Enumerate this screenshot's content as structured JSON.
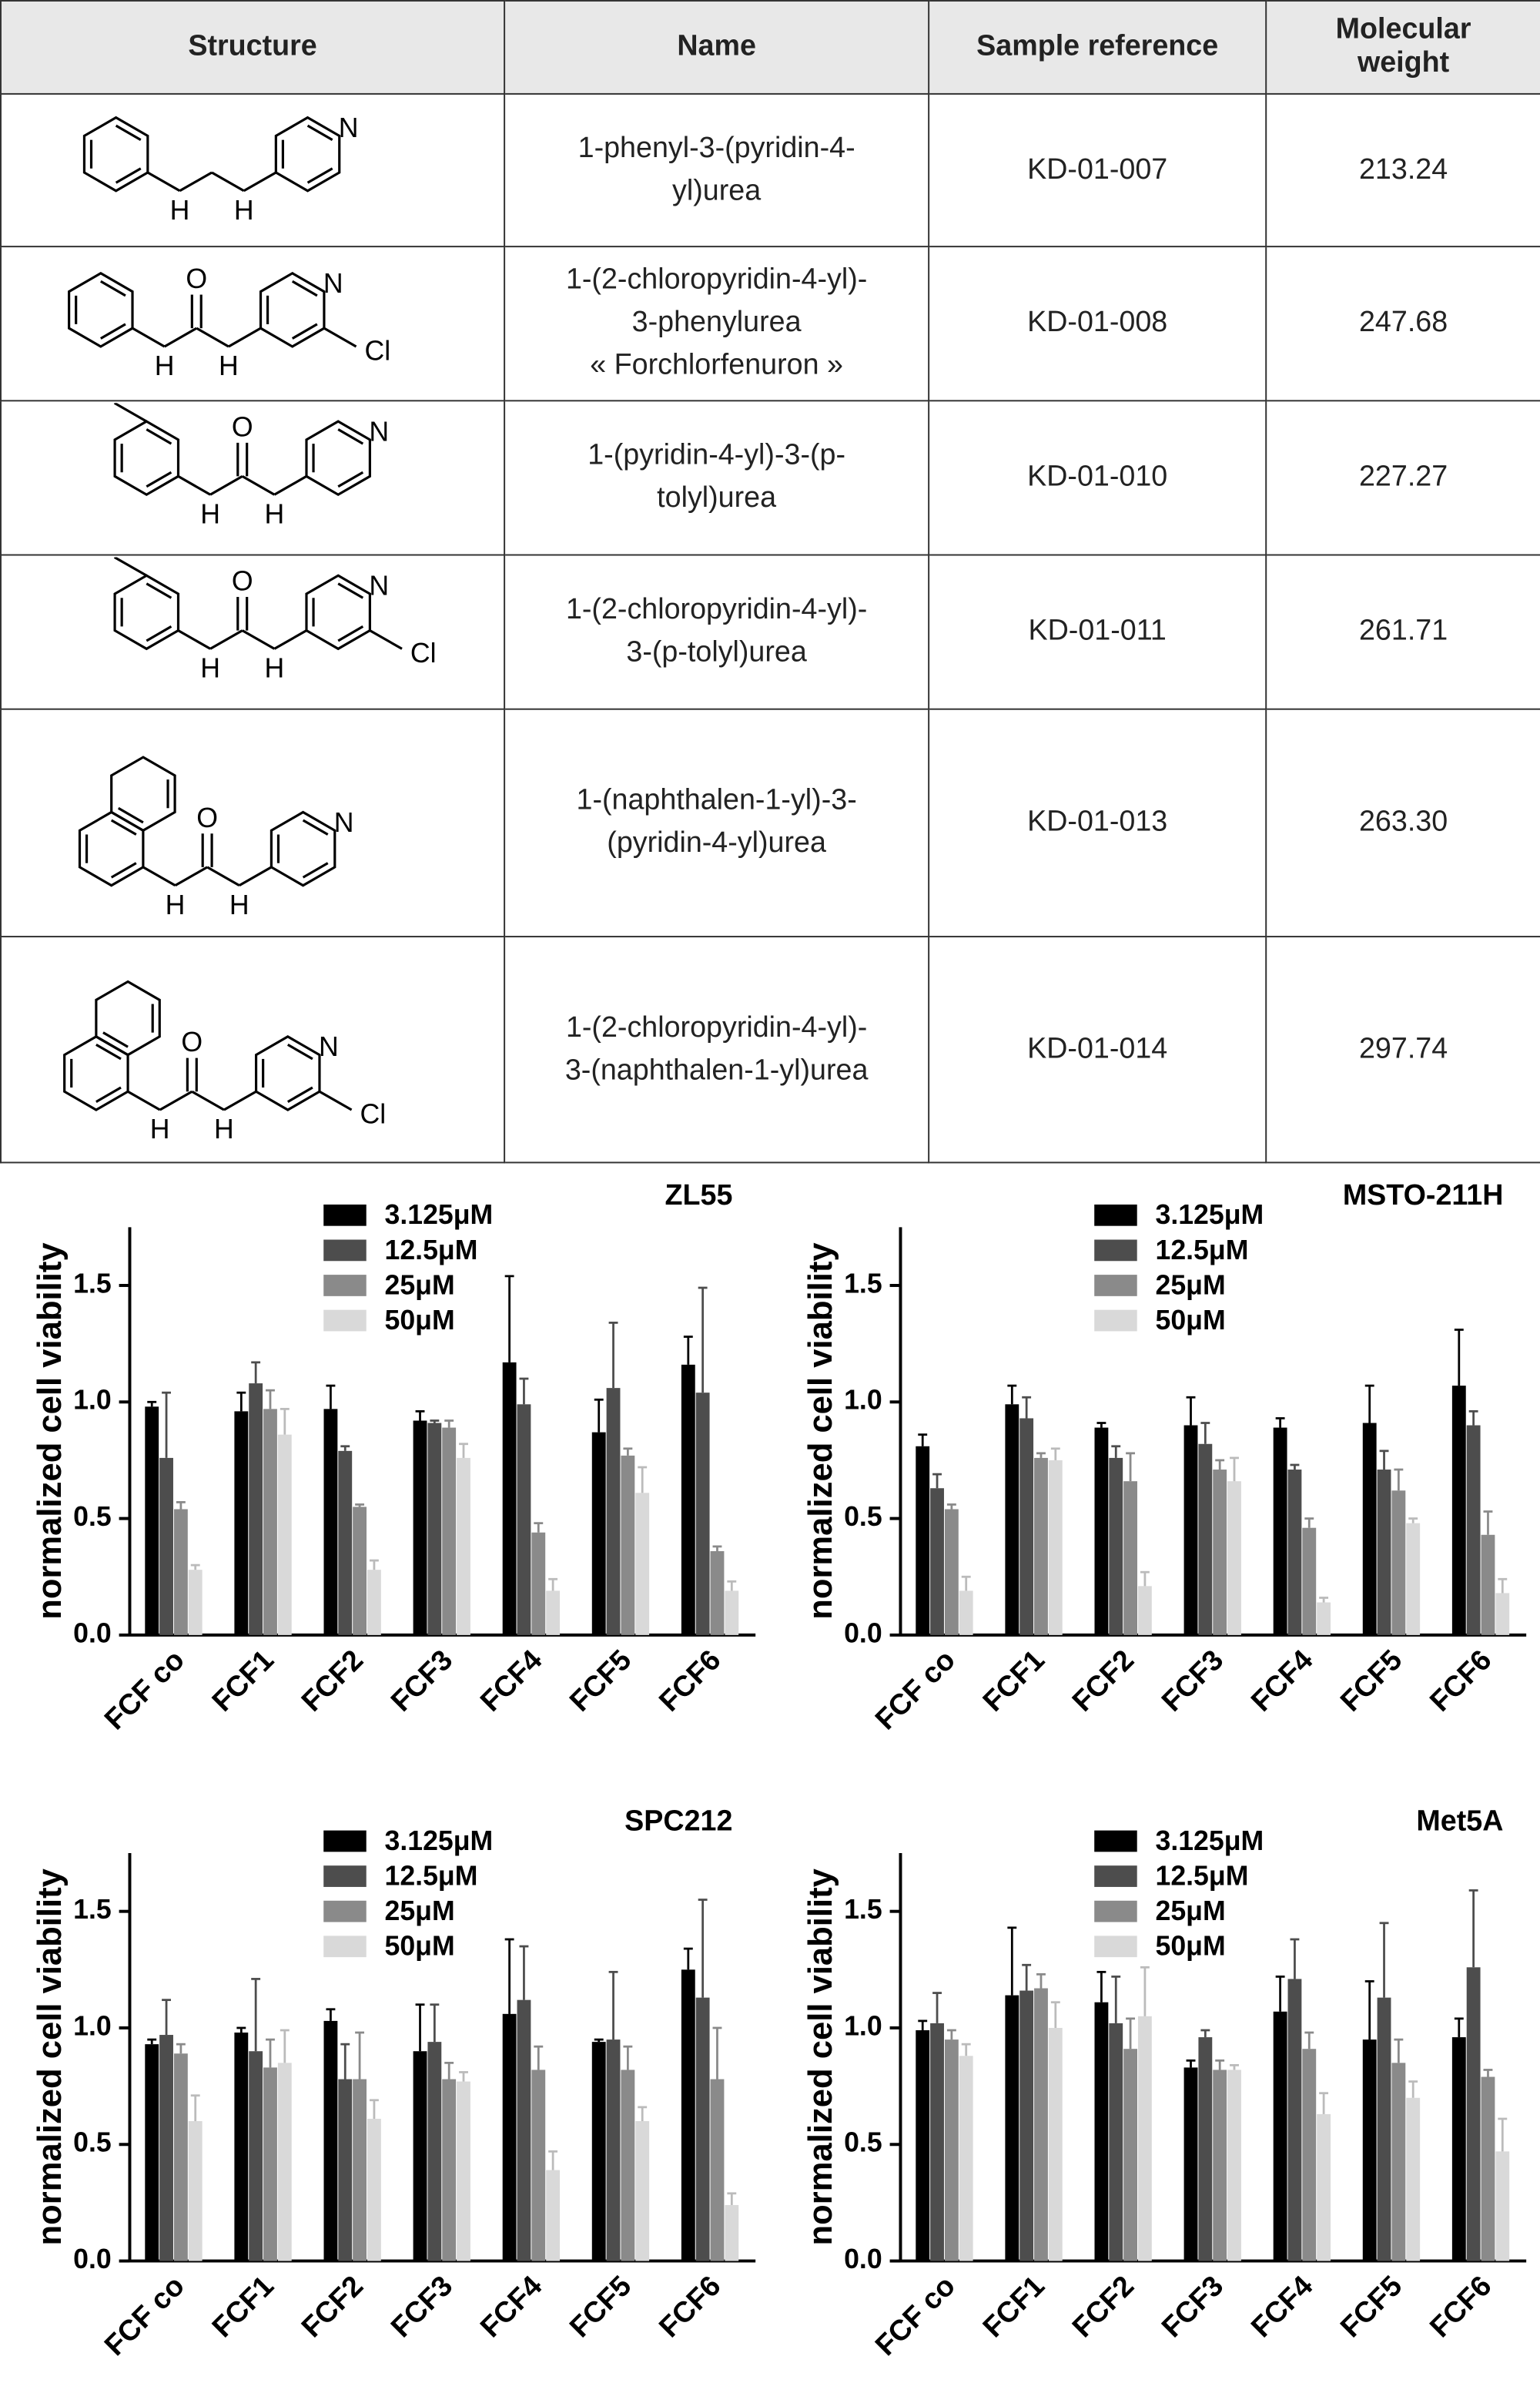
{
  "table": {
    "headers": [
      "Structure",
      "Name",
      "Sample reference",
      "Molecular weight"
    ],
    "rows": [
      {
        "structure_atoms": [
          "N",
          "H",
          "H"
        ],
        "name": [
          "1-phenyl-3-(pyridin-4-",
          "yl)urea"
        ],
        "reference": "KD-01-007",
        "weight": "213.24"
      },
      {
        "structure_atoms": [
          "N",
          "H",
          "H",
          "O",
          "Cl"
        ],
        "name": [
          "1-(2-chloropyridin-4-yl)-",
          "3-phenylurea",
          "« Forchlorfenuron »"
        ],
        "reference": "KD-01-008",
        "weight": "247.68"
      },
      {
        "structure_atoms": [
          "N",
          "H",
          "H",
          "O"
        ],
        "name": [
          "1-(pyridin-4-yl)-3-(p-",
          "tolyl)urea"
        ],
        "reference": "KD-01-010",
        "weight": "227.27"
      },
      {
        "structure_atoms": [
          "N",
          "H",
          "H",
          "O",
          "Cl"
        ],
        "name": [
          "1-(2-chloropyridin-4-yl)-",
          "3-(p-tolyl)urea"
        ],
        "reference": "KD-01-011",
        "weight": "261.71"
      },
      {
        "structure_atoms": [
          "N",
          "H",
          "H",
          "O"
        ],
        "name": [
          "1-(naphthalen-1-yl)-3-",
          "(pyridin-4-yl)urea"
        ],
        "reference": "KD-01-013",
        "weight": "263.30"
      },
      {
        "structure_atoms": [
          "N",
          "H",
          "H",
          "O",
          "Cl"
        ],
        "name": [
          "1-(2-chloropyridin-4-yl)-",
          "3-(naphthalen-1-yl)urea"
        ],
        "reference": "KD-01-014",
        "weight": "297.74"
      }
    ]
  },
  "chart_data": [
    {
      "type": "bar",
      "title": "ZL55",
      "y_label": "normalized cell viability",
      "categories": [
        "FCF co",
        "FCF1",
        "FCF2",
        "FCF3",
        "FCF4",
        "FCF5",
        "FCF6"
      ],
      "ylim": [
        0,
        1.75
      ],
      "yticks": [
        {
          "value": 0,
          "label": "0.0"
        },
        0.5,
        {
          "value": 1,
          "label": "1.0"
        },
        1.5
      ],
      "series": [
        {
          "name": "3.125μM",
          "color": "#000000",
          "values": [
            0.98,
            0.96,
            0.97,
            0.92,
            1.17,
            0.87,
            1.16
          ],
          "errors": [
            0.02,
            0.08,
            0.1,
            0.04,
            0.37,
            0.14,
            0.12
          ]
        },
        {
          "name": "12.5μM",
          "color": "#4d4d4d",
          "values": [
            0.76,
            1.08,
            0.79,
            0.91,
            0.99,
            1.06,
            1.04
          ],
          "errors": [
            0.28,
            0.09,
            0.02,
            0.01,
            0.11,
            0.28,
            0.45
          ]
        },
        {
          "name": "25μM",
          "color": "#8a8a8a",
          "values": [
            0.54,
            0.97,
            0.55,
            0.89,
            0.44,
            0.77,
            0.36
          ],
          "errors": [
            0.03,
            0.08,
            0.01,
            0.03,
            0.04,
            0.03,
            0.02
          ]
        },
        {
          "name": "50μM",
          "color": "#d9d9d9",
          "values": [
            0.28,
            0.86,
            0.28,
            0.76,
            0.19,
            0.61,
            0.19
          ],
          "errors": [
            0.02,
            0.11,
            0.04,
            0.06,
            0.05,
            0.11,
            0.04
          ]
        }
      ]
    },
    {
      "type": "bar",
      "title": "MSTO-211H",
      "y_label": "normalized cell viability",
      "categories": [
        "FCF co",
        "FCF1",
        "FCF2",
        "FCF3",
        "FCF4",
        "FCF5",
        "FCF6"
      ],
      "ylim": [
        0,
        1.75
      ],
      "yticks": [
        {
          "value": 0,
          "label": "0.0"
        },
        0.5,
        {
          "value": 1,
          "label": "1.0"
        },
        1.5
      ],
      "series": [
        {
          "name": "3.125μM",
          "color": "#000000",
          "values": [
            0.81,
            0.99,
            0.89,
            0.9,
            0.89,
            0.91,
            1.07
          ],
          "errors": [
            0.05,
            0.08,
            0.02,
            0.12,
            0.04,
            0.16,
            0.24
          ]
        },
        {
          "name": "12.5μM",
          "color": "#4d4d4d",
          "values": [
            0.63,
            0.93,
            0.76,
            0.82,
            0.71,
            0.71,
            0.9
          ],
          "errors": [
            0.06,
            0.09,
            0.05,
            0.09,
            0.02,
            0.08,
            0.06
          ]
        },
        {
          "name": "25μM",
          "color": "#8a8a8a",
          "values": [
            0.54,
            0.76,
            0.66,
            0.71,
            0.46,
            0.62,
            0.43
          ],
          "errors": [
            0.02,
            0.02,
            0.12,
            0.04,
            0.04,
            0.09,
            0.1
          ]
        },
        {
          "name": "50μM",
          "color": "#d9d9d9",
          "values": [
            0.19,
            0.75,
            0.21,
            0.66,
            0.14,
            0.48,
            0.18
          ],
          "errors": [
            0.06,
            0.05,
            0.06,
            0.1,
            0.02,
            0.02,
            0.06
          ]
        }
      ]
    },
    {
      "type": "bar",
      "title": "SPC212",
      "y_label": "normalized cell viability",
      "categories": [
        "FCF co",
        "FCF1",
        "FCF2",
        "FCF3",
        "FCF4",
        "FCF5",
        "FCF6"
      ],
      "ylim": [
        0,
        1.75
      ],
      "yticks": [
        {
          "value": 0,
          "label": "0.0"
        },
        0.5,
        {
          "value": 1,
          "label": "1.0"
        },
        1.5
      ],
      "series": [
        {
          "name": "3.125μM",
          "color": "#000000",
          "values": [
            0.93,
            0.98,
            1.03,
            0.9,
            1.06,
            0.94,
            1.25
          ],
          "errors": [
            0.02,
            0.02,
            0.05,
            0.2,
            0.32,
            0.01,
            0.09
          ]
        },
        {
          "name": "12.5μM",
          "color": "#4d4d4d",
          "values": [
            0.97,
            0.9,
            0.78,
            0.94,
            1.12,
            0.95,
            1.13
          ],
          "errors": [
            0.15,
            0.31,
            0.15,
            0.16,
            0.23,
            0.29,
            0.42
          ]
        },
        {
          "name": "25μM",
          "color": "#8a8a8a",
          "values": [
            0.89,
            0.83,
            0.78,
            0.78,
            0.82,
            0.82,
            0.78
          ],
          "errors": [
            0.04,
            0.12,
            0.2,
            0.07,
            0.1,
            0.1,
            0.22
          ]
        },
        {
          "name": "50μM",
          "color": "#d9d9d9",
          "values": [
            0.6,
            0.85,
            0.61,
            0.77,
            0.39,
            0.6,
            0.24
          ],
          "errors": [
            0.11,
            0.14,
            0.08,
            0.04,
            0.08,
            0.06,
            0.05
          ]
        }
      ]
    },
    {
      "type": "bar",
      "title": "Met5A",
      "y_label": "normalized cell viability",
      "categories": [
        "FCF co",
        "FCF1",
        "FCF2",
        "FCF3",
        "FCF4",
        "FCF5",
        "FCF6"
      ],
      "ylim": [
        0,
        1.75
      ],
      "yticks": [
        {
          "value": 0,
          "label": "0.0"
        },
        0.5,
        {
          "value": 1,
          "label": "1.0"
        },
        1.5
      ],
      "series": [
        {
          "name": "3.125μM",
          "color": "#000000",
          "values": [
            0.99,
            1.14,
            1.11,
            0.83,
            1.07,
            0.95,
            0.96
          ],
          "errors": [
            0.04,
            0.29,
            0.13,
            0.03,
            0.15,
            0.25,
            0.08
          ]
        },
        {
          "name": "12.5μM",
          "color": "#4d4d4d",
          "values": [
            1.02,
            1.16,
            1.02,
            0.96,
            1.21,
            1.13,
            1.26
          ],
          "errors": [
            0.13,
            0.11,
            0.2,
            0.03,
            0.17,
            0.32,
            0.33
          ]
        },
        {
          "name": "25μM",
          "color": "#8a8a8a",
          "values": [
            0.95,
            1.17,
            0.91,
            0.82,
            0.91,
            0.85,
            0.79
          ],
          "errors": [
            0.04,
            0.06,
            0.13,
            0.04,
            0.07,
            0.1,
            0.03
          ]
        },
        {
          "name": "50μM",
          "color": "#d9d9d9",
          "values": [
            0.88,
            1.0,
            1.05,
            0.82,
            0.63,
            0.7,
            0.47
          ],
          "errors": [
            0.05,
            0.11,
            0.21,
            0.02,
            0.09,
            0.07,
            0.14
          ]
        }
      ]
    }
  ]
}
